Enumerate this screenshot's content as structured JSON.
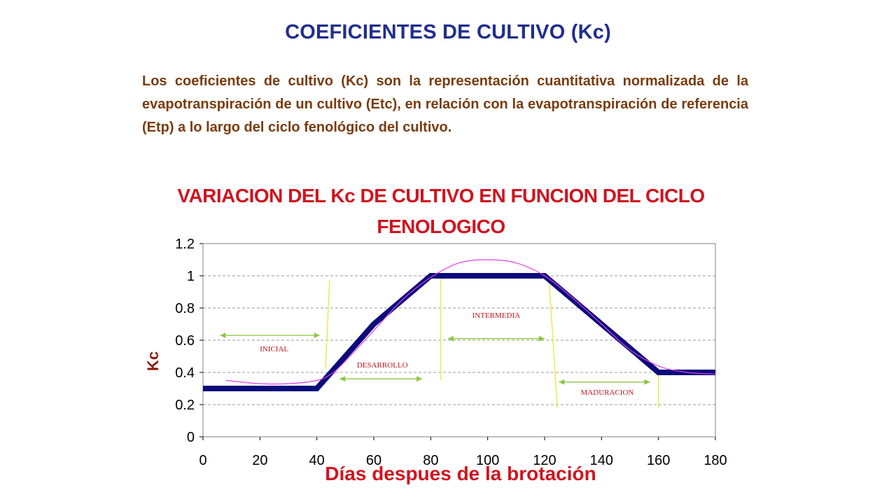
{
  "slide": {
    "title": "COEFICIENTES DE CULTIVO (Kc)",
    "intro": "Los coeficientes de cultivo (Kc) son la representación cuantitativa normalizada de la evapotranspiración de un cultivo (Etc), en relación con la evapotranspiración de referencia (Etp) a lo largo del ciclo fenológico del cultivo."
  },
  "colors": {
    "title": "#1f2e8f",
    "intro_text": "#7a3b0c",
    "chart_title": "#d0141f",
    "kc_line": "#0a0a7a",
    "smooth_curve": "#e040e8",
    "stage_boundary": "#e8e84a",
    "stage_arrow": "#8cc63f",
    "stage_label": "#c2151d",
    "grid": "#9a9a9a"
  },
  "chart_data": {
    "type": "line",
    "title": "VARIACION DEL Kc DE CULTIVO EN FUNCION DEL CICLO FENOLOGICO",
    "title_lines": [
      "VARIACION DEL Kc DE CULTIVO EN FUNCION DEL CICLO",
      "FENOLOGICO"
    ],
    "xlabel": "Días despues de la brotación",
    "ylabel": "Kc",
    "xlim": [
      0,
      180
    ],
    "ylim": [
      0,
      1.2
    ],
    "x_ticks": [
      0,
      20,
      40,
      60,
      80,
      100,
      120,
      140,
      160,
      180
    ],
    "y_ticks": [
      0,
      0.2,
      0.4,
      0.6,
      0.8,
      1,
      1.2
    ],
    "y_tick_labels": [
      "0",
      "0.2",
      "0.4",
      "0.6",
      "0.8",
      "1",
      "1.2"
    ],
    "grid": "horizontal dashed",
    "series": [
      {
        "style": "thick line",
        "x": [
          0,
          40,
          60,
          80,
          120,
          140,
          160,
          180
        ],
        "y": [
          0.3,
          0.3,
          0.7,
          1.0,
          1.0,
          0.7,
          0.4,
          0.4
        ]
      },
      {
        "style": "smooth curve",
        "x": [
          8,
          20,
          30,
          40,
          45,
          50,
          60,
          70,
          80,
          90,
          100,
          110,
          120,
          130,
          140,
          150,
          160,
          170,
          180
        ],
        "y": [
          0.35,
          0.33,
          0.33,
          0.35,
          0.39,
          0.47,
          0.66,
          0.85,
          0.99,
          1.08,
          1.1,
          1.08,
          1.0,
          0.86,
          0.7,
          0.54,
          0.44,
          0.4,
          0.39
        ]
      }
    ],
    "boundaries": [
      {
        "x": [
          44.5,
          43
        ],
        "y": [
          0.97,
          0.42
        ]
      },
      {
        "x": [
          83.5,
          83.5
        ],
        "y": [
          0.99,
          0.35
        ]
      },
      {
        "x": [
          121.5,
          124.5
        ],
        "y": [
          0.99,
          0.18
        ]
      },
      {
        "x": [
          160,
          160
        ],
        "y": [
          0.4,
          0.18
        ]
      }
    ],
    "stages": [
      {
        "label": "INICIAL",
        "x_start": 6,
        "x_end": 41,
        "y": 0.63,
        "label_x": 25,
        "label_y": 0.53
      },
      {
        "label": "DESARROLLO",
        "x_start": 48,
        "x_end": 77,
        "y": 0.36,
        "label_x": 63,
        "label_y": 0.43
      },
      {
        "label": "INTERMEDIA",
        "x_start": 86,
        "x_end": 120,
        "y": 0.61,
        "label_x": 103,
        "label_y": 0.74
      },
      {
        "label": "MADURACION",
        "x_start": 125,
        "x_end": 157,
        "y": 0.34,
        "label_x": 142,
        "label_y": 0.26
      }
    ]
  }
}
